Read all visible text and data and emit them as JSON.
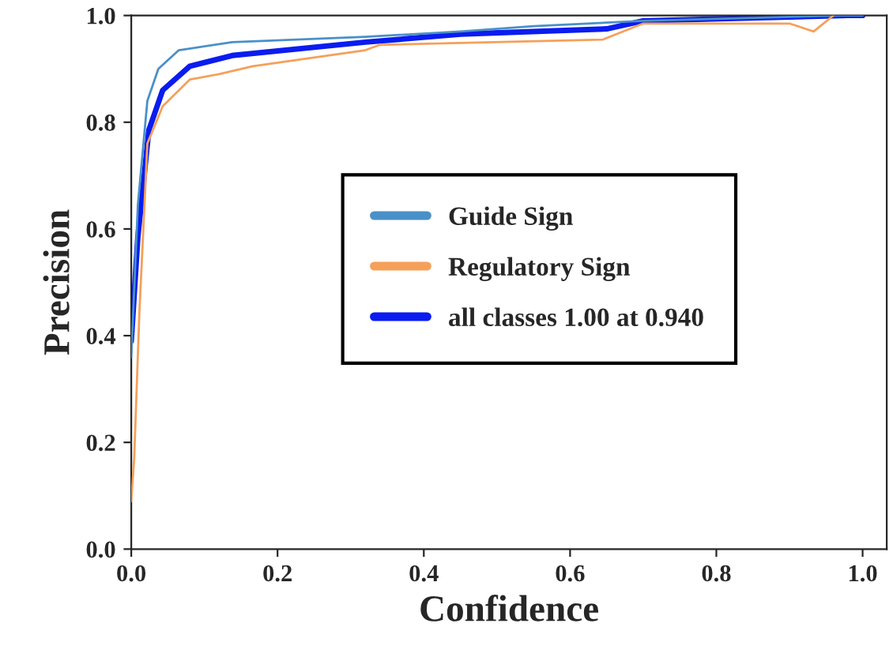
{
  "chart_data": {
    "type": "line",
    "xlabel": "Confidence",
    "ylabel": "Precision",
    "xlim": [
      0,
      1.033
    ],
    "ylim": [
      0,
      1.0
    ],
    "xticks": [
      {
        "value": 0,
        "label": "0.0"
      },
      0.2,
      0.4,
      0.6,
      0.8,
      {
        "value": 1.0,
        "label": "1.0"
      }
    ],
    "yticks": [
      {
        "value": 0,
        "label": "0.0"
      },
      0.2,
      0.4,
      0.6,
      0.8,
      {
        "value": 1.0,
        "label": "1.0"
      }
    ],
    "grid": false,
    "legend": "center",
    "marker": "none",
    "line_style": "solid",
    "series": [
      {
        "name": "Guide Sign",
        "color": "#4a90c8",
        "x": [
          0,
          0.009,
          0.022,
          0.037,
          0.065,
          0.138,
          0.32,
          0.45,
          0.55,
          0.7,
          0.97,
          1.0
        ],
        "values": [
          0.36,
          0.645,
          0.84,
          0.9,
          0.935,
          0.95,
          0.96,
          0.97,
          0.98,
          0.99,
          1.0,
          1.0
        ]
      },
      {
        "name": "Regulatory Sign",
        "color": "#f5a05a",
        "x": [
          0,
          0.004,
          0.011,
          0.022,
          0.043,
          0.08,
          0.12,
          0.166,
          0.32,
          0.34,
          0.645,
          0.7,
          0.9,
          0.933,
          0.96
        ],
        "values": [
          0.09,
          0.17,
          0.44,
          0.76,
          0.83,
          0.88,
          0.89,
          0.905,
          0.935,
          0.945,
          0.955,
          0.985,
          0.985,
          0.97,
          1.0
        ]
      },
      {
        "name": "all classes 1.00 at 0.940",
        "color": "#0a1cf0",
        "x": [
          0,
          0.009,
          0.024,
          0.043,
          0.08,
          0.138,
          0.32,
          0.45,
          0.65,
          0.7,
          0.98,
          1.0
        ],
        "values": [
          0.39,
          0.585,
          0.785,
          0.86,
          0.905,
          0.925,
          0.95,
          0.965,
          0.975,
          0.99,
          1.0,
          1.0
        ]
      }
    ]
  }
}
